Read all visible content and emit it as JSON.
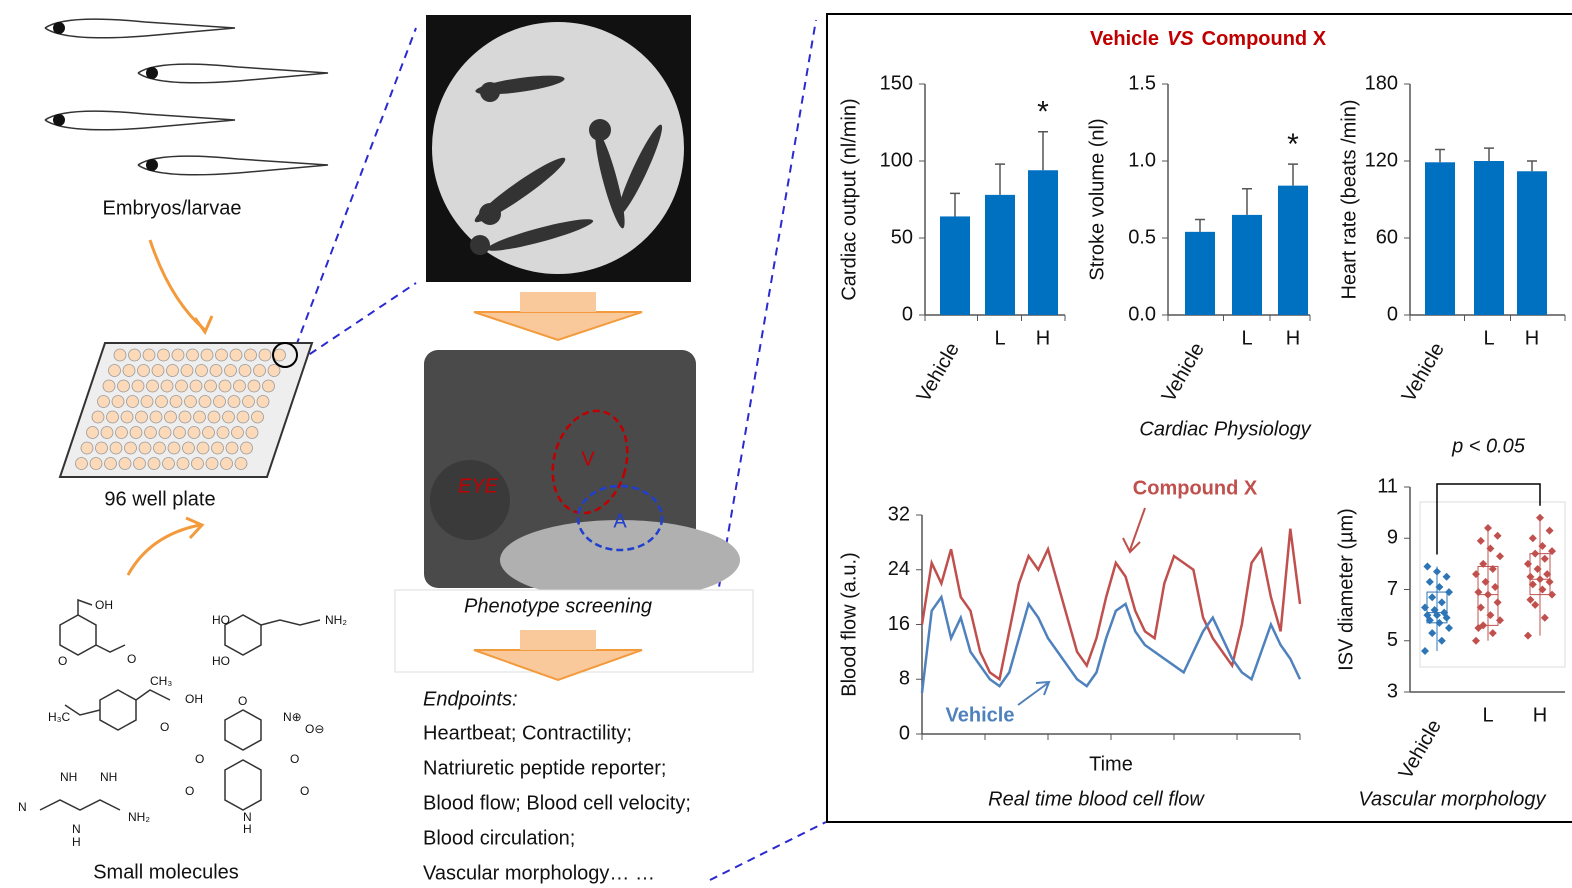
{
  "left": {
    "embryos_label": "Embryos/larvae",
    "plate_label": "96 well plate",
    "molecules_label": "Small molecules",
    "chem_labels": [
      "OH",
      "O",
      "O",
      "HO",
      "HO",
      "NH₂",
      "CH₃",
      "OH",
      "H₃C",
      "O",
      "NH",
      "NH",
      "N",
      "N",
      "H",
      "NH₂",
      "O",
      "N⊕",
      "O⊖",
      "O",
      "O",
      "O",
      "O",
      "N",
      "H"
    ]
  },
  "middle": {
    "image_labels": [
      "EYE",
      "V",
      "A"
    ],
    "phenotype_label": "Phenotype screening",
    "endpoints_title": "Endpoints:",
    "endpoints": [
      "Heartbeat; Contractility;",
      "Natriuretic peptide reporter;",
      "Blood flow;  Blood cell velocity;",
      "Blood circulation;",
      "Vascular morphology… …"
    ]
  },
  "figure_title": [
    "Vehicle",
    "VS",
    "Compound X"
  ],
  "section_label": "Cardiac Physiology",
  "chart_data": [
    {
      "type": "bar",
      "ylabel": "Cardiac output (nl/min)",
      "categories": [
        "Vehicle",
        "L",
        "H"
      ],
      "values": [
        64,
        78,
        94
      ],
      "errors": [
        15,
        20,
        25
      ],
      "color": "#0070c0",
      "ylim": [
        0,
        150
      ],
      "yticks": [
        0,
        50,
        100,
        150
      ],
      "annotations": [
        {
          "category": "H",
          "text": "*"
        }
      ]
    },
    {
      "type": "bar",
      "ylabel": "Stroke volume (nl)",
      "categories": [
        "Vehicle",
        "L",
        "H"
      ],
      "values": [
        0.54,
        0.65,
        0.84
      ],
      "errors": [
        0.08,
        0.17,
        0.14
      ],
      "color": "#0070c0",
      "ylim": [
        0,
        1.5
      ],
      "yticks": [
        {
          "value": 0,
          "label": "0.0"
        },
        0.5,
        {
          "value": 1,
          "label": "1.0"
        },
        1.5
      ],
      "annotations": [
        {
          "category": "H",
          "text": "*"
        }
      ]
    },
    {
      "type": "bar",
      "ylabel": "Heart rate (beats /min)",
      "categories": [
        "Vehicle",
        "L",
        "H"
      ],
      "values": [
        119,
        120,
        112
      ],
      "errors": [
        10,
        10,
        8
      ],
      "color": "#0070c0",
      "ylim": [
        0,
        180
      ],
      "yticks": [
        0,
        60,
        120,
        180
      ],
      "annotations": []
    },
    {
      "type": "line",
      "ylabel": "Blood flow (a.u.)",
      "xlabel": "Time",
      "caption": "Real time blood cell flow",
      "ylim": [
        0,
        32
      ],
      "yticks": [
        0,
        8,
        16,
        24,
        32
      ],
      "categories": [
        null,
        null,
        null,
        null,
        null,
        null,
        null,
        null,
        null,
        null,
        null,
        null,
        null,
        null,
        null,
        null,
        null,
        null,
        null,
        null,
        null,
        null,
        null,
        null,
        null,
        null,
        null,
        null,
        null,
        null,
        null,
        null,
        null,
        null,
        null,
        null,
        null,
        null,
        null,
        null
      ],
      "series": [
        {
          "name": "Compound X",
          "color": "#c0504d",
          "values": [
            16,
            25,
            22,
            27,
            20,
            18,
            12,
            9,
            8,
            15,
            22,
            26,
            24,
            27,
            22,
            17,
            12,
            10,
            14,
            20,
            25,
            23,
            18,
            15,
            14,
            22,
            26,
            25,
            24,
            17,
            14,
            12,
            10,
            16,
            25,
            27,
            20,
            15,
            30,
            19
          ]
        },
        {
          "name": "Vehicle",
          "color": "#4f81bd",
          "values": [
            6,
            18,
            20,
            14,
            17,
            12,
            10,
            8,
            7,
            9,
            14,
            19,
            17,
            14,
            12,
            10,
            8,
            7,
            9,
            14,
            18,
            19,
            15,
            13,
            12,
            11,
            10,
            9,
            12,
            15,
            17,
            14,
            11,
            9,
            8,
            12,
            16,
            13,
            11,
            8
          ]
        }
      ]
    },
    {
      "type": "box",
      "ylabel": "ISV diameter (µm)",
      "caption": "Vascular morphology",
      "annotation": "p < 0.05",
      "categories": [
        "Vehicle",
        "L",
        "H"
      ],
      "colors": [
        "#2e75b6",
        "#c0504d",
        "#c0504d"
      ],
      "ylim": [
        3,
        11
      ],
      "yticks": [
        3,
        5,
        7,
        9,
        11
      ],
      "boxes": [
        {
          "whislo": 4.6,
          "q1": 5.7,
          "med": 6.1,
          "q3": 6.9,
          "whishi": 7.9
        },
        {
          "whislo": 5.0,
          "q1": 5.6,
          "med": 6.8,
          "q3": 7.9,
          "whishi": 9.4
        },
        {
          "whislo": 5.2,
          "q1": 6.8,
          "med": 7.4,
          "q3": 8.4,
          "whishi": 9.8
        }
      ],
      "points": [
        [
          4.6,
          5.0,
          5.3,
          5.5,
          5.7,
          5.8,
          5.9,
          6.0,
          6.0,
          6.1,
          6.2,
          6.3,
          6.5,
          6.7,
          6.9,
          7.1,
          7.3,
          7.5,
          7.7,
          7.9
        ],
        [
          5.0,
          5.3,
          5.6,
          5.8,
          6.0,
          6.3,
          6.5,
          6.8,
          6.9,
          7.1,
          7.3,
          7.6,
          7.8,
          8.0,
          8.3,
          8.6,
          8.9,
          9.1,
          9.4,
          5.5
        ],
        [
          5.2,
          5.9,
          6.4,
          6.8,
          7.0,
          7.2,
          7.3,
          7.4,
          7.5,
          7.6,
          7.8,
          8.0,
          8.2,
          8.4,
          8.5,
          8.7,
          9.0,
          9.3,
          9.8,
          6.6
        ]
      ]
    }
  ]
}
